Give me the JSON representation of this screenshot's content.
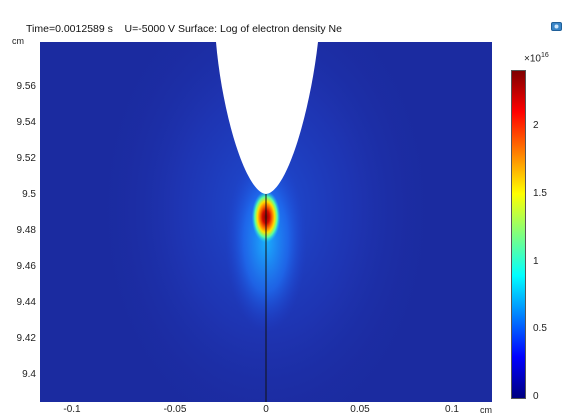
{
  "plot_title": "Time=0.0012589 s    U=-5000 V Surface: Log of electron density Ne",
  "y_axis": {
    "unit": "cm",
    "ticks": [
      "9.56",
      "9.54",
      "9.52",
      "9.5",
      "9.48",
      "9.46",
      "9.44",
      "9.42",
      "9.4"
    ]
  },
  "x_axis": {
    "unit": "cm",
    "ticks": [
      "-0.1",
      "-0.05",
      "0",
      "0.05",
      "0.1"
    ]
  },
  "colorbar": {
    "multiplier_base": "×10",
    "multiplier_exp": "16",
    "ticks": [
      "2",
      "1.5",
      "1",
      "0.5",
      "0"
    ],
    "colors": [
      "#00007f",
      "#0000ff",
      "#007fff",
      "#00ffff",
      "#7fff7f",
      "#ffff00",
      "#ff7f00",
      "#ff0000",
      "#7f0000"
    ]
  },
  "background_color": "#1b2ba0",
  "corner_icon": "camera-icon"
}
